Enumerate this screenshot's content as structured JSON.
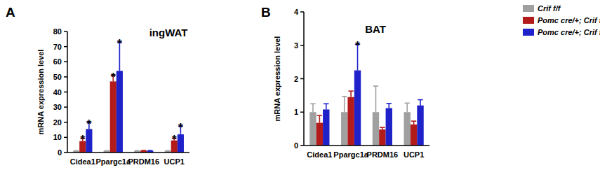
{
  "chart_data": [
    {
      "type": "bar",
      "panel": "A",
      "title": "ingWAT",
      "y_label": "mRNA expression level",
      "categories": [
        "Cidea1",
        "Ppargc1a",
        "PRDM16",
        "UCP1"
      ],
      "ylim": [
        0,
        80
      ],
      "yticks": [
        0,
        10,
        20,
        30,
        40,
        50,
        60,
        70,
        80
      ],
      "grid": false,
      "series": [
        {
          "name": "Crif f/f",
          "color": "#a0a0a0",
          "values": [
            1.0,
            1.0,
            1.0,
            1.0
          ],
          "errors": [
            0.2,
            0.2,
            0.2,
            0.2
          ],
          "significance": [
            null,
            null,
            null,
            null
          ]
        },
        {
          "name": "Pomc cre/+; Crif f/+",
          "color": "#b31b1b",
          "values": [
            7.5,
            47,
            1.2,
            8.0
          ],
          "errors": [
            2.0,
            4.0,
            0.2,
            1.5
          ],
          "significance": [
            "*",
            "*",
            null,
            "*"
          ]
        },
        {
          "name": "Pomc cre/+; Crif f/f",
          "color": "#1e22c8",
          "values": [
            15.5,
            54,
            1.1,
            12.0
          ],
          "errors": [
            4.5,
            19.0,
            0.2,
            5.5
          ],
          "significance": [
            "*",
            "*",
            null,
            "*"
          ]
        }
      ]
    },
    {
      "type": "bar",
      "panel": "B",
      "title": "BAT",
      "y_label": "mRNA expression level",
      "categories": [
        "Cidea1",
        "Ppargc1a",
        "PRDM16",
        "UCP1"
      ],
      "ylim": [
        0,
        4
      ],
      "yticks": [
        0,
        1,
        2,
        3,
        4
      ],
      "grid": false,
      "legend": "right",
      "series": [
        {
          "name": "Crif f/f",
          "color": "#a0a0a0",
          "values": [
            1.0,
            1.0,
            1.0,
            1.0
          ],
          "errors": [
            0.25,
            0.47,
            0.78,
            0.27
          ],
          "significance": [
            null,
            null,
            null,
            null
          ]
        },
        {
          "name": "Pomc cre/+; Crif f/+",
          "color": "#b31b1b",
          "values": [
            0.68,
            1.45,
            0.48,
            0.63
          ],
          "errors": [
            0.22,
            0.18,
            0.06,
            0.1
          ],
          "significance": [
            null,
            null,
            null,
            null
          ]
        },
        {
          "name": "Pomc cre/+; Crif f/f",
          "color": "#1e22c8",
          "values": [
            1.08,
            2.25,
            1.12,
            1.2
          ],
          "errors": [
            0.17,
            0.78,
            0.14,
            0.17
          ],
          "significance": [
            null,
            "*",
            null,
            null
          ]
        }
      ]
    }
  ]
}
